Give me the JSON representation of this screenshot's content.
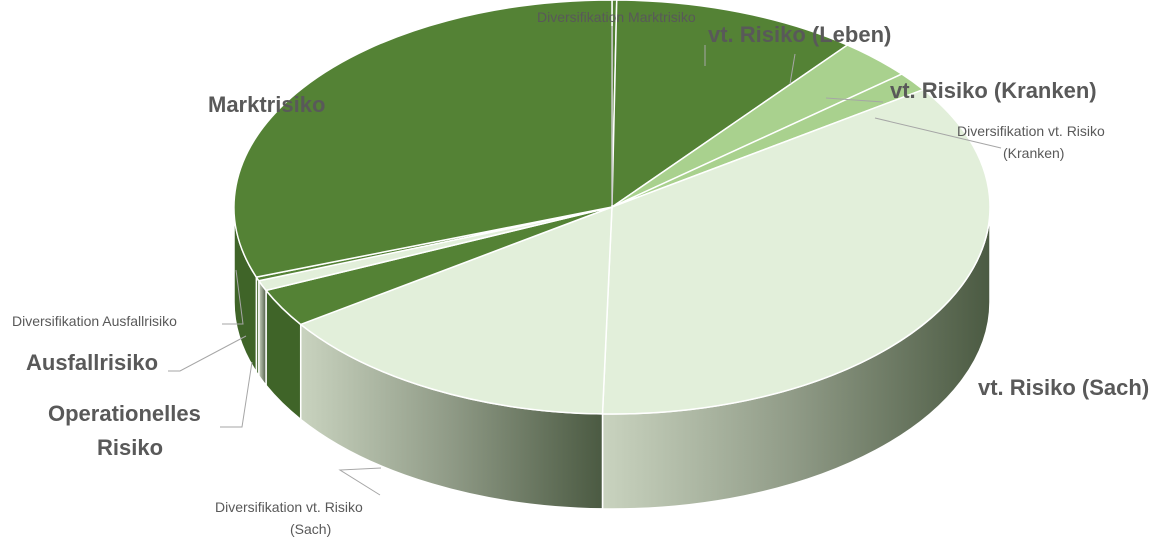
{
  "chart_data": {
    "type": "pie",
    "style": "3d-exploded-tilted",
    "slices": [
      {
        "label": "Diversifikation Marktrisiko",
        "value": 0.2,
        "color": "#548235",
        "emphasis": "small"
      },
      {
        "label": "vt. Risiko (Leben)",
        "value": 10.5,
        "color": "#548235",
        "emphasis": "big"
      },
      {
        "label": "vt. Risiko (Kranken)",
        "value": 3.2,
        "color": "#a9d18e",
        "emphasis": "big"
      },
      {
        "label": "Diversifikation vt. Risiko (Kranken)",
        "value": 1.5,
        "color": "#a9d18e",
        "emphasis": "small"
      },
      {
        "label": "vt. Risiko (Sach)",
        "value": 35.0,
        "color": "#e2efda",
        "emphasis": "big"
      },
      {
        "label": "Diversifikation vt. Risiko (Sach)",
        "value": 15.0,
        "color": "#e2efda",
        "emphasis": "small"
      },
      {
        "label": "Operationelles Risiko",
        "value": 3.0,
        "color": "#548235",
        "emphasis": "big"
      },
      {
        "label": "Ausfallrisiko",
        "value": 0.8,
        "color": "#e2efda",
        "emphasis": "big"
      },
      {
        "label": "Diversifikation Ausfallrisiko",
        "value": 0.3,
        "color": "#548235",
        "emphasis": "small"
      },
      {
        "label": "Marktrisiko",
        "value": 30.5,
        "color": "#548235",
        "emphasis": "big"
      }
    ],
    "title": "",
    "legend": "none"
  }
}
